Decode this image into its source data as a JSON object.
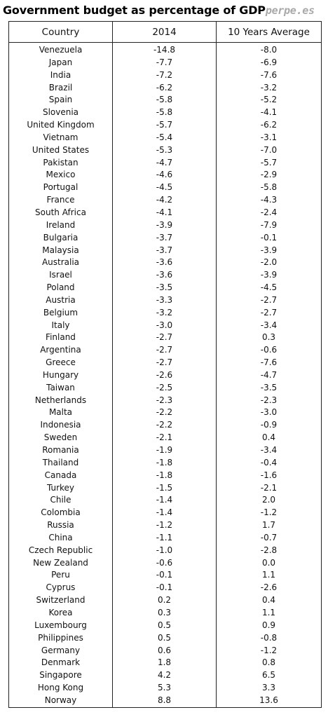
{
  "title": "Government budget as percentage of GDP",
  "watermark": "perpe.es",
  "table": {
    "headers": [
      "Country",
      "2014",
      "10 Years Average"
    ],
    "rows": [
      [
        "Venezuela",
        "-14.8",
        "-8.0"
      ],
      [
        "Japan",
        "-7.7",
        "-6.9"
      ],
      [
        "India",
        "-7.2",
        "-7.6"
      ],
      [
        "Brazil",
        "-6.2",
        "-3.2"
      ],
      [
        "Spain",
        "-5.8",
        "-5.2"
      ],
      [
        "Slovenia",
        "-5.8",
        "-4.1"
      ],
      [
        "United Kingdom",
        "-5.7",
        "-6.2"
      ],
      [
        "Vietnam",
        "-5.4",
        "-3.1"
      ],
      [
        "United States",
        "-5.3",
        "-7.0"
      ],
      [
        "Pakistan",
        "-4.7",
        "-5.7"
      ],
      [
        "Mexico",
        "-4.6",
        "-2.9"
      ],
      [
        "Portugal",
        "-4.5",
        "-5.8"
      ],
      [
        "France",
        "-4.2",
        "-4.3"
      ],
      [
        "South Africa",
        "-4.1",
        "-2.4"
      ],
      [
        "Ireland",
        "-3.9",
        "-7.9"
      ],
      [
        "Bulgaria",
        "-3.7",
        "-0.1"
      ],
      [
        "Malaysia",
        "-3.7",
        "-3.9"
      ],
      [
        "Australia",
        "-3.6",
        "-2.0"
      ],
      [
        "Israel",
        "-3.6",
        "-3.9"
      ],
      [
        "Poland",
        "-3.5",
        "-4.5"
      ],
      [
        "Austria",
        "-3.3",
        "-2.7"
      ],
      [
        "Belgium",
        "-3.2",
        "-2.7"
      ],
      [
        "Italy",
        "-3.0",
        "-3.4"
      ],
      [
        "Finland",
        "-2.7",
        "0.3"
      ],
      [
        "Argentina",
        "-2.7",
        "-0.6"
      ],
      [
        "Greece",
        "-2.7",
        "-7.6"
      ],
      [
        "Hungary",
        "-2.6",
        "-4.7"
      ],
      [
        "Taiwan",
        "-2.5",
        "-3.5"
      ],
      [
        "Netherlands",
        "-2.3",
        "-2.3"
      ],
      [
        "Malta",
        "-2.2",
        "-3.0"
      ],
      [
        "Indonesia",
        "-2.2",
        "-0.9"
      ],
      [
        "Sweden",
        "-2.1",
        "0.4"
      ],
      [
        "Romania",
        "-1.9",
        "-3.4"
      ],
      [
        "Thailand",
        "-1.8",
        "-0.4"
      ],
      [
        "Canada",
        "-1.8",
        "-1.6"
      ],
      [
        "Turkey",
        "-1.5",
        "-2.1"
      ],
      [
        "Chile",
        "-1.4",
        "2.0"
      ],
      [
        "Colombia",
        "-1.4",
        "-1.2"
      ],
      [
        "Russia",
        "-1.2",
        "1.7"
      ],
      [
        "China",
        "-1.1",
        "-0.7"
      ],
      [
        "Czech Republic",
        "-1.0",
        "-2.8"
      ],
      [
        "New Zealand",
        "-0.6",
        "0.0"
      ],
      [
        "Peru",
        "-0.1",
        "1.1"
      ],
      [
        "Cyprus",
        "-0.1",
        "-2.6"
      ],
      [
        "Switzerland",
        "0.2",
        "0.4"
      ],
      [
        "Korea",
        "0.3",
        "1.1"
      ],
      [
        "Luxembourg",
        "0.5",
        "0.9"
      ],
      [
        "Philippines",
        "0.5",
        "-0.8"
      ],
      [
        "Germany",
        "0.6",
        "-1.2"
      ],
      [
        "Denmark",
        "1.8",
        "0.8"
      ],
      [
        "Singapore",
        "4.2",
        "6.5"
      ],
      [
        "Hong Kong",
        "5.3",
        "3.3"
      ],
      [
        "Norway",
        "8.8",
        "13.6"
      ]
    ]
  }
}
